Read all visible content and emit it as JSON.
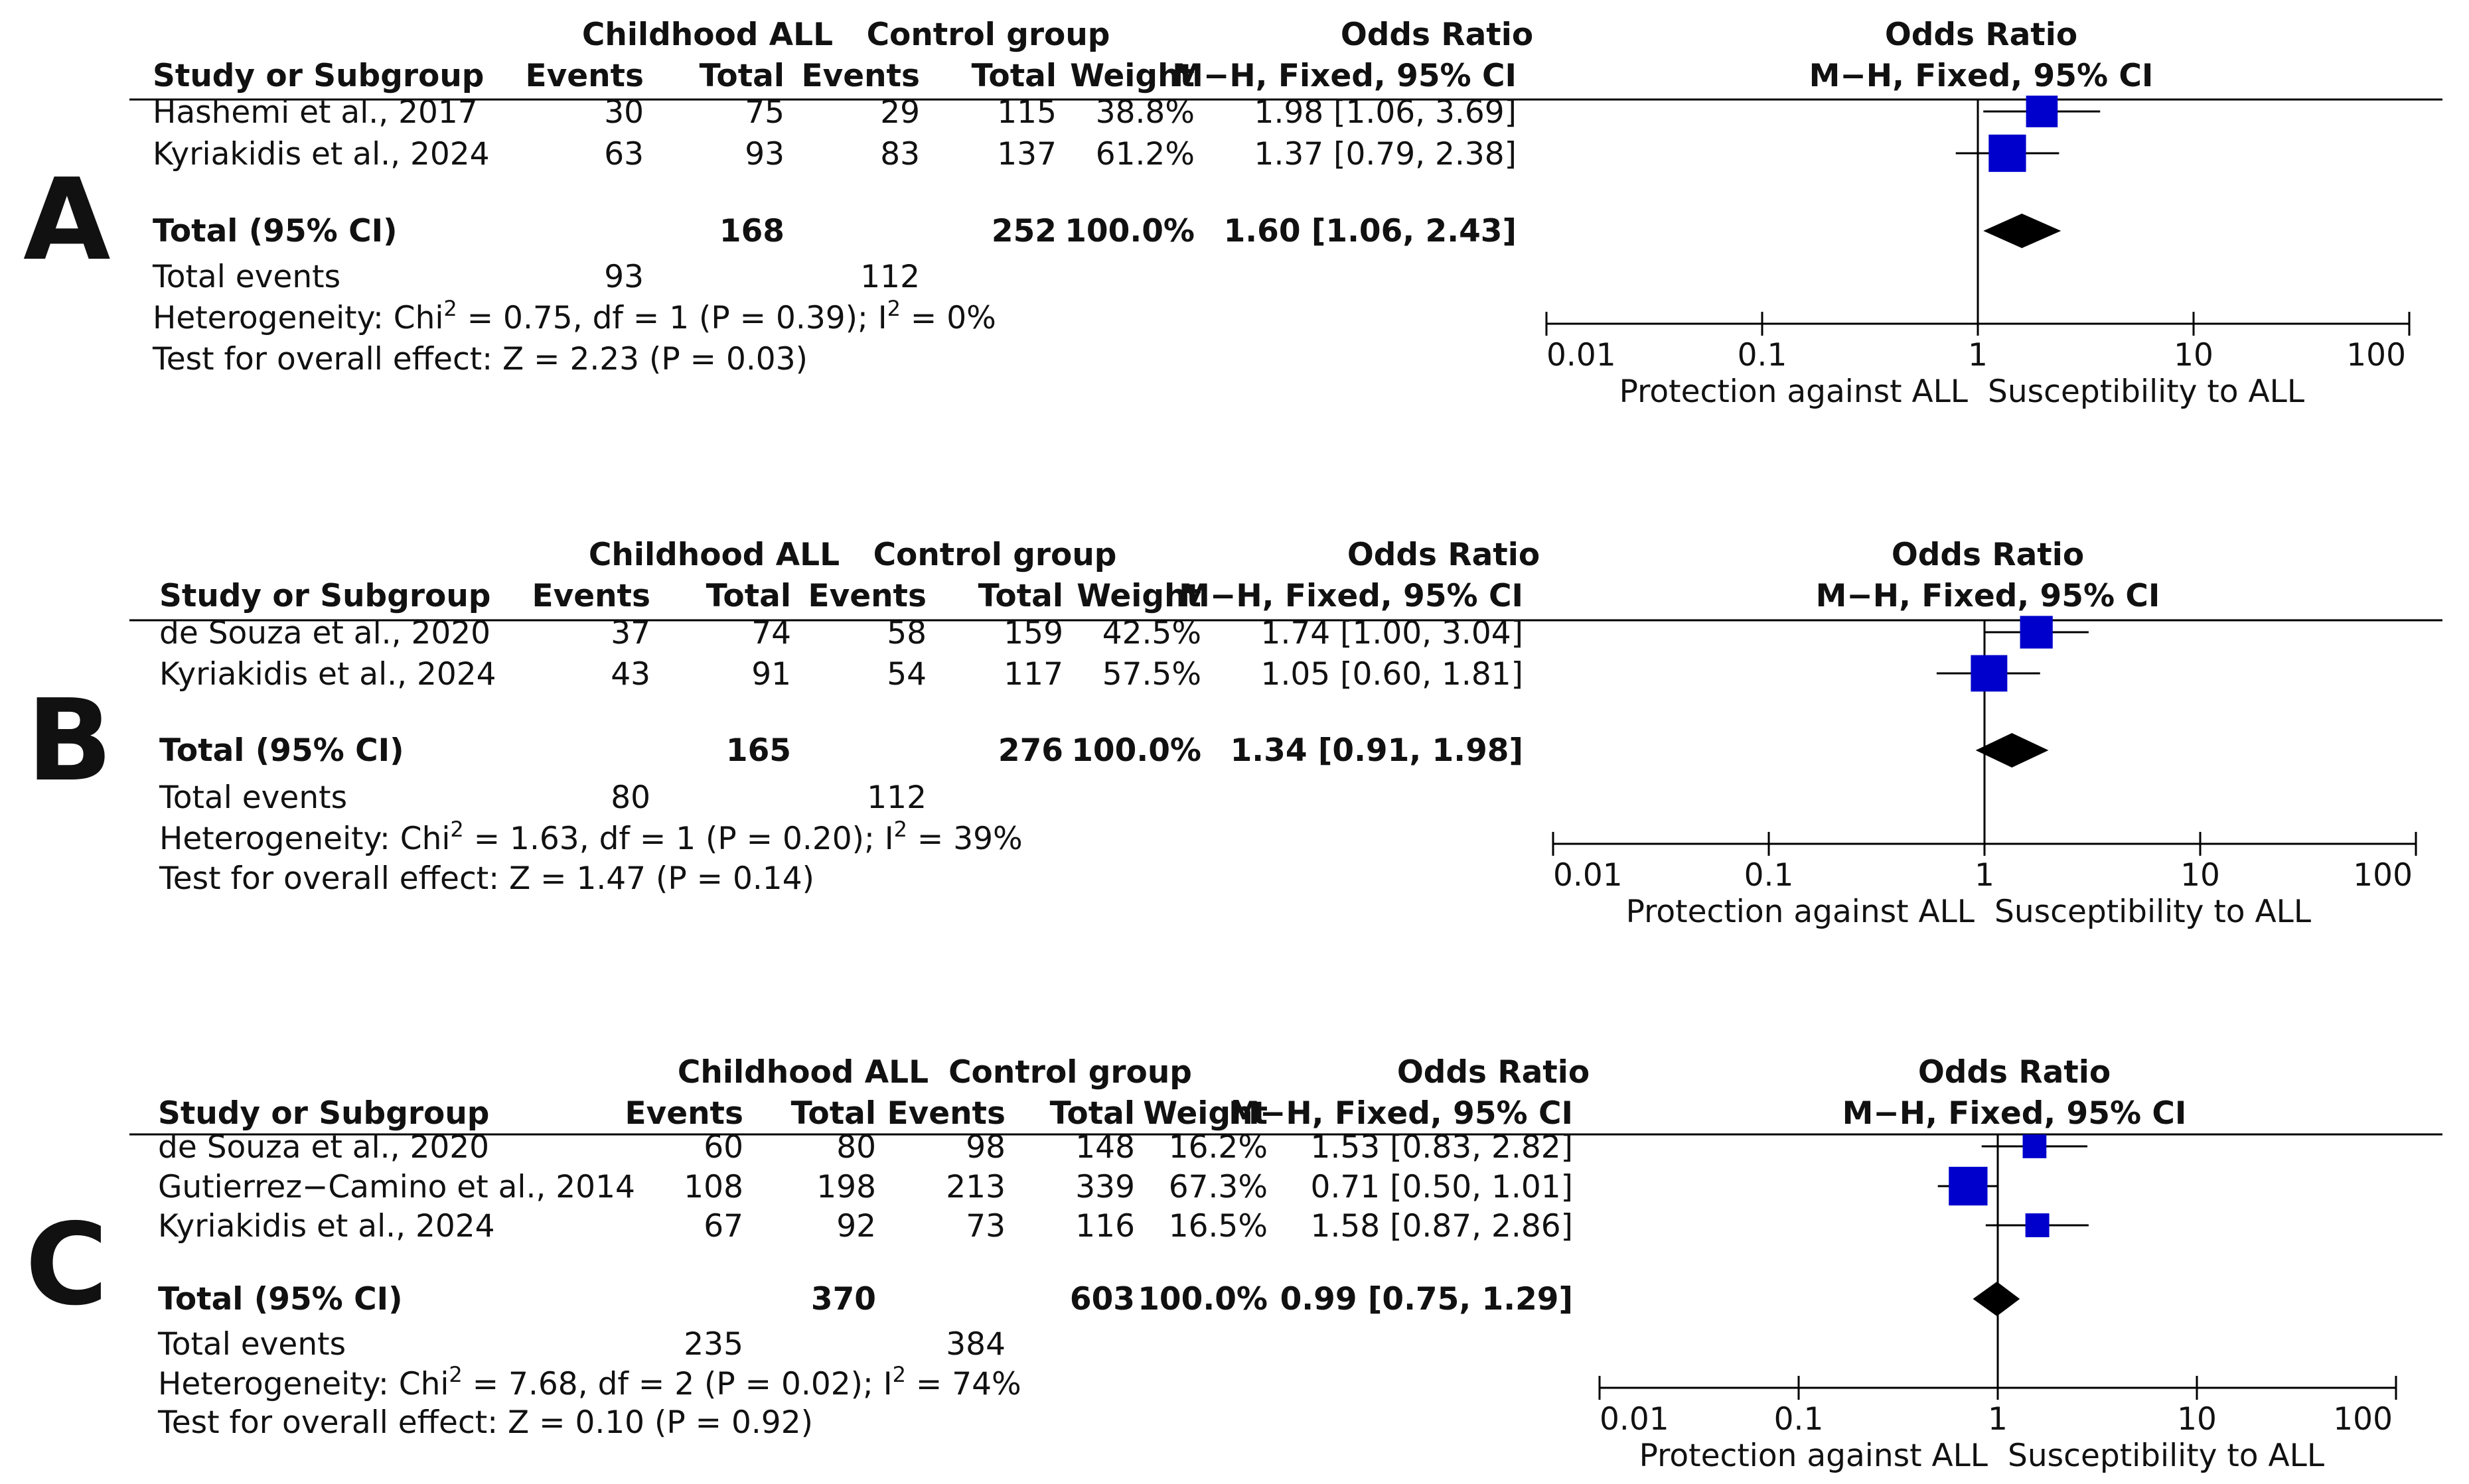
{
  "figure": {
    "headers": {
      "study": "Study or Subgroup",
      "group1": "Childhood ALL",
      "group2": "Control group",
      "events": "Events",
      "total": "Total",
      "weight": "Weight",
      "or_title": "Odds Ratio",
      "or_method": "M−H, Fixed, 95% CI"
    },
    "axis": {
      "left_caption": "Protection against ALL",
      "right_caption": "Susceptibility to ALL"
    },
    "colors": {
      "square": "#0000cc",
      "diamond": "#000000",
      "line": "#000000"
    }
  },
  "chart_data": [
    {
      "type": "forest",
      "panel": "A",
      "studies": [
        {
          "name": "Hashemi et al., 2017",
          "e1": "30",
          "t1": "75",
          "e2": "29",
          "t2": "115",
          "weight": "38.8%",
          "ci_text": "1.98 [1.06, 3.69]",
          "or": 1.98,
          "lo": 1.06,
          "hi": 3.69,
          "w": 38.8
        },
        {
          "name": "Kyriakidis et al., 2024",
          "e1": "63",
          "t1": "93",
          "e2": "83",
          "t2": "137",
          "weight": "61.2%",
          "ci_text": "1.37 [0.79, 2.38]",
          "or": 1.37,
          "lo": 0.79,
          "hi": 2.38,
          "w": 61.2
        }
      ],
      "total": {
        "label": "Total (95% CI)",
        "t1": "168",
        "t2": "252",
        "weight": "100.0%",
        "ci_text": "1.60 [1.06, 2.43]",
        "or": 1.6,
        "lo": 1.06,
        "hi": 2.43
      },
      "events": {
        "label": "Total events",
        "e1": "93",
        "e2": "112"
      },
      "heterogeneity": {
        "pre": "Heterogeneity: Chi",
        "sup1": "2",
        "mid": " = 0.75, df = 1 (P = 0.39); I",
        "sup2": "2",
        "post": " = 0%"
      },
      "overall_effect": "Test for overall effect: Z = 2.23 (P = 0.03)",
      "axis_ticks": [
        0.01,
        0.1,
        1,
        10,
        100
      ],
      "axis_tick_labels": [
        "0.01",
        "0.1",
        "1",
        "10",
        "100"
      ]
    },
    {
      "type": "forest",
      "panel": "B",
      "studies": [
        {
          "name": "de Souza et al., 2020",
          "e1": "37",
          "t1": "74",
          "e2": "58",
          "t2": "159",
          "weight": "42.5%",
          "ci_text": "1.74 [1.00, 3.04]",
          "or": 1.74,
          "lo": 1.0,
          "hi": 3.04,
          "w": 42.5
        },
        {
          "name": "Kyriakidis et al., 2024",
          "e1": "43",
          "t1": "91",
          "e2": "54",
          "t2": "117",
          "weight": "57.5%",
          "ci_text": "1.05 [0.60, 1.81]",
          "or": 1.05,
          "lo": 0.6,
          "hi": 1.81,
          "w": 57.5
        }
      ],
      "total": {
        "label": "Total (95% CI)",
        "t1": "165",
        "t2": "276",
        "weight": "100.0%",
        "ci_text": "1.34 [0.91, 1.98]",
        "or": 1.34,
        "lo": 0.91,
        "hi": 1.98
      },
      "events": {
        "label": "Total events",
        "e1": "80",
        "e2": "112"
      },
      "heterogeneity": {
        "pre": "Heterogeneity: Chi",
        "sup1": "2",
        "mid": " = 1.63, df = 1 (P = 0.20); I",
        "sup2": "2",
        "post": " = 39%"
      },
      "overall_effect": "Test for overall effect: Z = 1.47 (P = 0.14)",
      "axis_ticks": [
        0.01,
        0.1,
        1,
        10,
        100
      ],
      "axis_tick_labels": [
        "0.01",
        "0.1",
        "1",
        "10",
        "100"
      ]
    },
    {
      "type": "forest",
      "panel": "C",
      "studies": [
        {
          "name": "de Souza et al., 2020",
          "e1": "60",
          "t1": "80",
          "e2": "98",
          "t2": "148",
          "weight": "16.2%",
          "ci_text": "1.53 [0.83, 2.82]",
          "or": 1.53,
          "lo": 0.83,
          "hi": 2.82,
          "w": 16.2
        },
        {
          "name": "Gutierrez−Camino et al., 2014",
          "e1": "108",
          "t1": "198",
          "e2": "213",
          "t2": "339",
          "weight": "67.3%",
          "ci_text": "0.71 [0.50, 1.01]",
          "or": 0.71,
          "lo": 0.5,
          "hi": 1.01,
          "w": 67.3
        },
        {
          "name": "Kyriakidis et al., 2024",
          "e1": "67",
          "t1": "92",
          "e2": "73",
          "t2": "116",
          "weight": "16.5%",
          "ci_text": "1.58 [0.87, 2.86]",
          "or": 1.58,
          "lo": 0.87,
          "hi": 2.86,
          "w": 16.5
        }
      ],
      "total": {
        "label": "Total (95% CI)",
        "t1": "370",
        "t2": "603",
        "weight": "100.0%",
        "ci_text": "0.99 [0.75, 1.29]",
        "or": 0.99,
        "lo": 0.75,
        "hi": 1.29
      },
      "events": {
        "label": "Total events",
        "e1": "235",
        "e2": "384"
      },
      "heterogeneity": {
        "pre": "Heterogeneity: Chi",
        "sup1": "2",
        "mid": " = 7.68, df = 2 (P = 0.02); I",
        "sup2": "2",
        "post": " = 74%"
      },
      "overall_effect": "Test for overall effect: Z = 0.10 (P = 0.92)",
      "axis_ticks": [
        0.01,
        0.1,
        1,
        10,
        100
      ],
      "axis_tick_labels": [
        "0.01",
        "0.1",
        "1",
        "10",
        "100"
      ]
    }
  ]
}
